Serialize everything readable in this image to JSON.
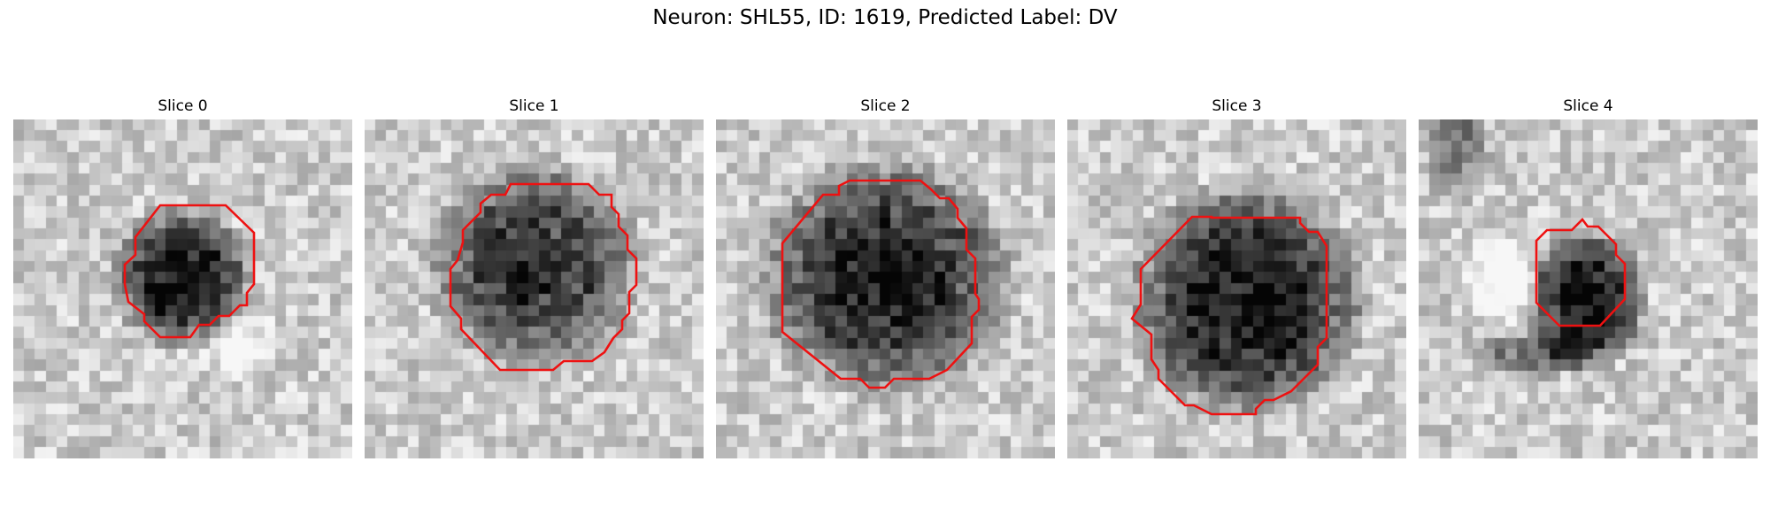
{
  "figure": {
    "title": "Neuron: SHL55, ID: 1619, Predicted Label: DV"
  },
  "colors": {
    "contour": "#ee1111",
    "background": "#ffffff"
  },
  "slices": [
    {
      "title": "Slice 0"
    },
    {
      "title": "Slice 1"
    },
    {
      "title": "Slice 2"
    },
    {
      "title": "Slice 3"
    },
    {
      "title": "Slice 4"
    }
  ]
}
